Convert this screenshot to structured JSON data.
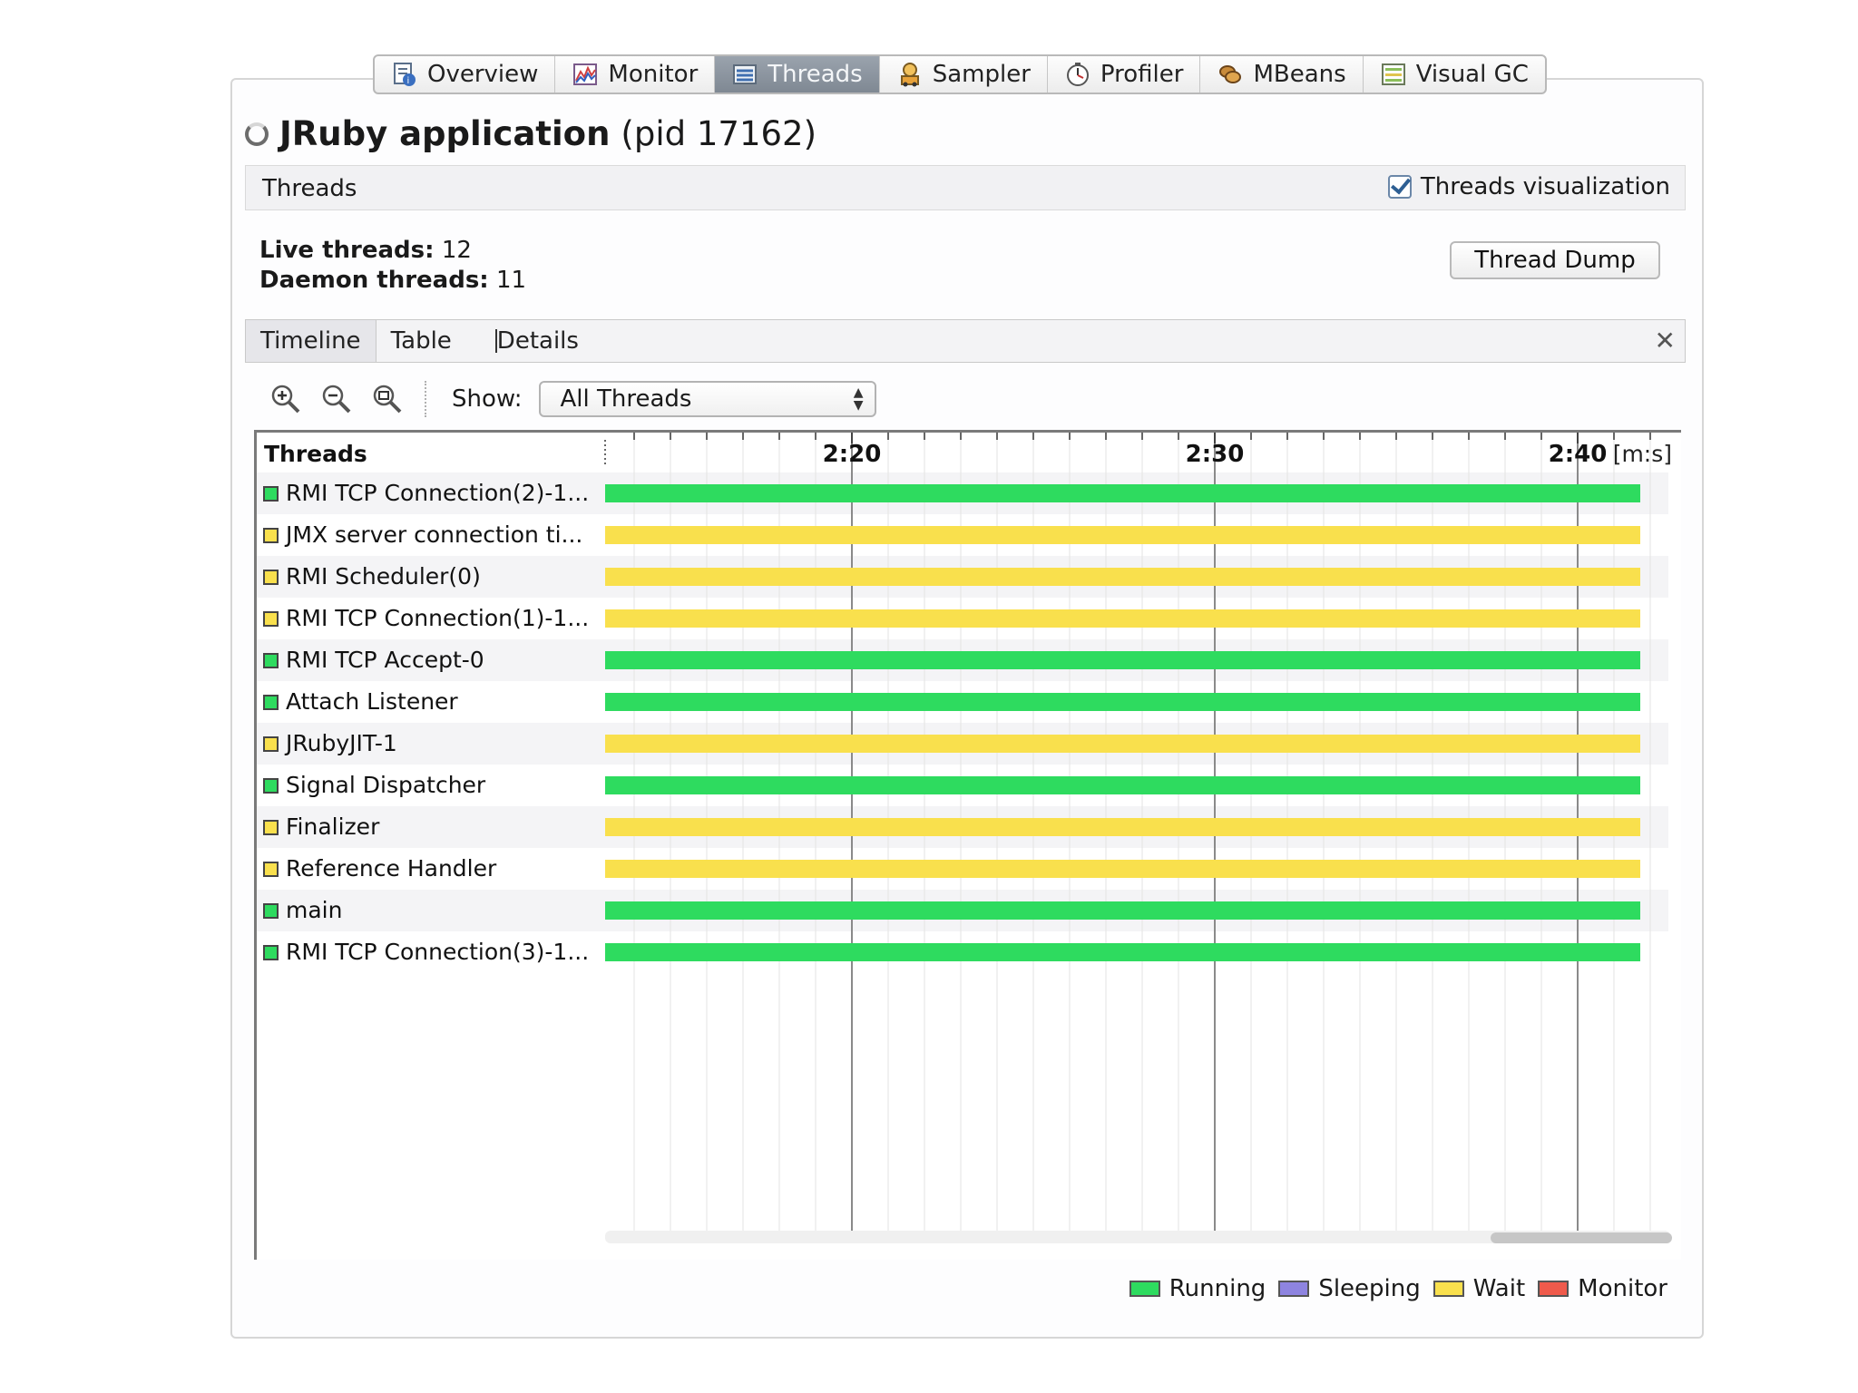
{
  "tabs": [
    {
      "label": "Overview",
      "icon": "overview-icon",
      "active": false
    },
    {
      "label": "Monitor",
      "icon": "monitor-icon",
      "active": false
    },
    {
      "label": "Threads",
      "icon": "threads-icon",
      "active": true
    },
    {
      "label": "Sampler",
      "icon": "sampler-icon",
      "active": false
    },
    {
      "label": "Profiler",
      "icon": "profiler-icon",
      "active": false
    },
    {
      "label": "MBeans",
      "icon": "mbeans-icon",
      "active": false
    },
    {
      "label": "Visual GC",
      "icon": "visual-gc-icon",
      "active": false
    }
  ],
  "app": {
    "name": "JRuby application",
    "pid": "(pid 17162)"
  },
  "section": {
    "title": "Threads",
    "visualization_label": "Threads visualization",
    "visualization_checked": true
  },
  "stats": {
    "live_label": "Live threads:",
    "live_value": "12",
    "daemon_label": "Daemon threads:",
    "daemon_value": "11"
  },
  "thread_dump_label": "Thread Dump",
  "subtabs": [
    "Timeline",
    "Table",
    "Details"
  ],
  "toolbar": {
    "show_label": "Show:",
    "show_value": "All Threads"
  },
  "timeline": {
    "column_header": "Threads",
    "unit": "[m:s]",
    "ticks": [
      "2:20",
      "2:30",
      "2:40"
    ],
    "threads": [
      {
        "name": "RMI TCP Connection(2)-1...",
        "state": "running"
      },
      {
        "name": "JMX server connection ti...",
        "state": "wait"
      },
      {
        "name": "RMI Scheduler(0)",
        "state": "wait"
      },
      {
        "name": "RMI TCP Connection(1)-1...",
        "state": "wait"
      },
      {
        "name": "RMI TCP Accept-0",
        "state": "running"
      },
      {
        "name": "Attach Listener",
        "state": "running"
      },
      {
        "name": "JRubyJIT-1",
        "state": "wait"
      },
      {
        "name": "Signal Dispatcher",
        "state": "running"
      },
      {
        "name": "Finalizer",
        "state": "wait"
      },
      {
        "name": "Reference Handler",
        "state": "wait"
      },
      {
        "name": "main",
        "state": "running"
      },
      {
        "name": "RMI TCP Connection(3)-1...",
        "state": "running"
      }
    ]
  },
  "legend": [
    {
      "label": "Running",
      "state": "running"
    },
    {
      "label": "Sleeping",
      "state": "sleeping"
    },
    {
      "label": "Wait",
      "state": "wait"
    },
    {
      "label": "Monitor",
      "state": "monitor"
    }
  ],
  "colors": {
    "running": "#2edb5f",
    "sleeping": "#8e84e0",
    "wait": "#f9e04d",
    "monitor": "#ef5a4b"
  }
}
